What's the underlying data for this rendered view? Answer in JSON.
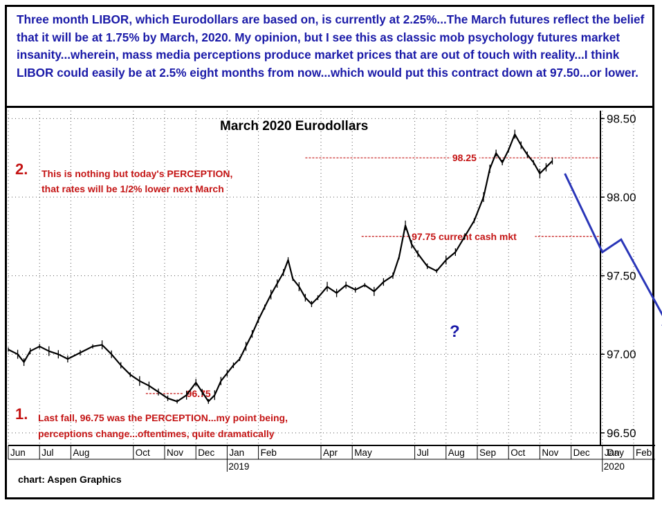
{
  "note": {
    "text": "Three month LIBOR, which Eurodollars are based on, is currently at 2.25%...The March futures reflect the belief that it will be at 1.75% by March, 2020. My opinion, but I see this as classic mob psychology futures market insanity...wherein, mass media perceptions produce market prices that are out of touch with reality...I think LIBOR could easily be at 2.5% eight months from now...which would put this contract down at 97.50...or lower."
  },
  "credit": "chart: Aspen Graphics",
  "colors": {
    "price": "#000000",
    "annotation": "#c41414",
    "projection": "#2a36b8",
    "grid": "#555555"
  },
  "chart_data": {
    "type": "line",
    "title": "March 2020 Eurodollars",
    "y_ticks": [
      "96.50",
      "97.00",
      "97.50",
      "98.00",
      "98.50"
    ],
    "ylim": [
      96.42,
      98.55
    ],
    "x_month_labels": [
      "Jun",
      "Jul",
      "Aug",
      "Oct",
      "Nov",
      "Dec",
      "Jan",
      "Feb",
      "Apr",
      "May",
      "Jul",
      "Aug",
      "Sep",
      "Oct",
      "Nov",
      "Dec",
      "Jan",
      "Feb"
    ],
    "x_axis_unit": "Day",
    "year_labels": [
      "2019",
      "2020"
    ],
    "series": [
      {
        "values": [
          [
            0.0,
            97.03
          ],
          [
            0.3,
            97.0
          ],
          [
            0.5,
            96.95
          ],
          [
            0.7,
            97.02
          ],
          [
            1.0,
            97.05
          ],
          [
            1.3,
            97.02
          ],
          [
            1.6,
            97.0
          ],
          [
            1.9,
            96.97
          ],
          [
            2.3,
            97.01
          ],
          [
            2.7,
            97.05
          ],
          [
            3.0,
            97.06
          ],
          [
            3.3,
            97.0
          ],
          [
            3.6,
            96.93
          ],
          [
            3.9,
            96.87
          ],
          [
            4.2,
            96.83
          ],
          [
            4.5,
            96.8
          ],
          [
            4.8,
            96.76
          ],
          [
            5.1,
            96.72
          ],
          [
            5.4,
            96.7
          ],
          [
            5.7,
            96.74
          ],
          [
            6.0,
            96.82
          ],
          [
            6.2,
            96.76
          ],
          [
            6.4,
            96.7
          ],
          [
            6.6,
            96.74
          ],
          [
            6.8,
            96.83
          ],
          [
            7.0,
            96.88
          ],
          [
            7.2,
            96.93
          ],
          [
            7.4,
            96.97
          ],
          [
            7.6,
            97.05
          ],
          [
            7.8,
            97.13
          ],
          [
            8.0,
            97.22
          ],
          [
            8.2,
            97.3
          ],
          [
            8.4,
            97.38
          ],
          [
            8.6,
            97.45
          ],
          [
            8.8,
            97.52
          ],
          [
            8.95,
            97.6
          ],
          [
            9.1,
            97.48
          ],
          [
            9.3,
            97.43
          ],
          [
            9.5,
            97.36
          ],
          [
            9.7,
            97.32
          ],
          [
            9.9,
            97.36
          ],
          [
            10.2,
            97.43
          ],
          [
            10.5,
            97.39
          ],
          [
            10.8,
            97.44
          ],
          [
            11.1,
            97.41
          ],
          [
            11.4,
            97.44
          ],
          [
            11.7,
            97.4
          ],
          [
            12.0,
            97.46
          ],
          [
            12.3,
            97.5
          ],
          [
            12.5,
            97.62
          ],
          [
            12.7,
            97.82
          ],
          [
            12.9,
            97.7
          ],
          [
            13.1,
            97.64
          ],
          [
            13.4,
            97.56
          ],
          [
            13.7,
            97.53
          ],
          [
            14.0,
            97.6
          ],
          [
            14.3,
            97.65
          ],
          [
            14.6,
            97.75
          ],
          [
            14.9,
            97.85
          ],
          [
            15.2,
            98.0
          ],
          [
            15.4,
            98.18
          ],
          [
            15.6,
            98.28
          ],
          [
            15.8,
            98.22
          ],
          [
            16.0,
            98.3
          ],
          [
            16.2,
            98.4
          ],
          [
            16.4,
            98.33
          ],
          [
            16.6,
            98.27
          ],
          [
            16.8,
            98.22
          ],
          [
            17.0,
            98.15
          ],
          [
            17.2,
            98.19
          ],
          [
            17.4,
            98.23
          ]
        ]
      }
    ],
    "reference_lines": [
      {
        "label": "98.25",
        "value": 98.25
      },
      {
        "label": "97.75 current cash mkt",
        "value": 97.75
      },
      {
        "label": "96.75",
        "value": 96.75
      }
    ],
    "projection_path": [
      [
        17.8,
        98.15
      ],
      [
        19.0,
        97.65
      ],
      [
        19.6,
        97.73
      ],
      [
        21.2,
        97.15
      ]
    ],
    "annotations": [
      {
        "number": "2.",
        "text_line1": "This is nothing but today's PERCEPTION,",
        "text_line2": "that rates will be 1/2% lower next March"
      },
      {
        "number": "1.",
        "text_line1": "Last fall, 96.75 was the PERCEPTION...my point being,",
        "text_line2": "perceptions change...oftentimes, quite dramatically"
      },
      {
        "text": "?"
      }
    ]
  }
}
